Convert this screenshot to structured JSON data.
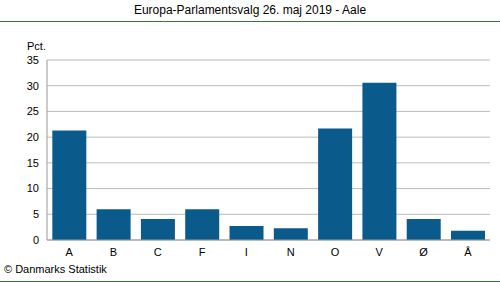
{
  "chart_data": {
    "type": "bar",
    "title": "Europa-Parlamentsvalg 26. maj 2019 - Aale",
    "y_label": "Pct.",
    "annotations": [
      "© Danmarks Statistik"
    ],
    "categories": [
      "A",
      "B",
      "C",
      "F",
      "I",
      "N",
      "O",
      "V",
      "Ø",
      "Å"
    ],
    "values": [
      21.3,
      6.0,
      4.1,
      6.0,
      2.7,
      2.3,
      21.7,
      30.6,
      4.1,
      1.8
    ],
    "color": "#0b5a8c",
    "ylim": [
      0,
      35
    ],
    "yticks": [
      0,
      5,
      10,
      15,
      20,
      25,
      30,
      35
    ],
    "grid": true
  }
}
